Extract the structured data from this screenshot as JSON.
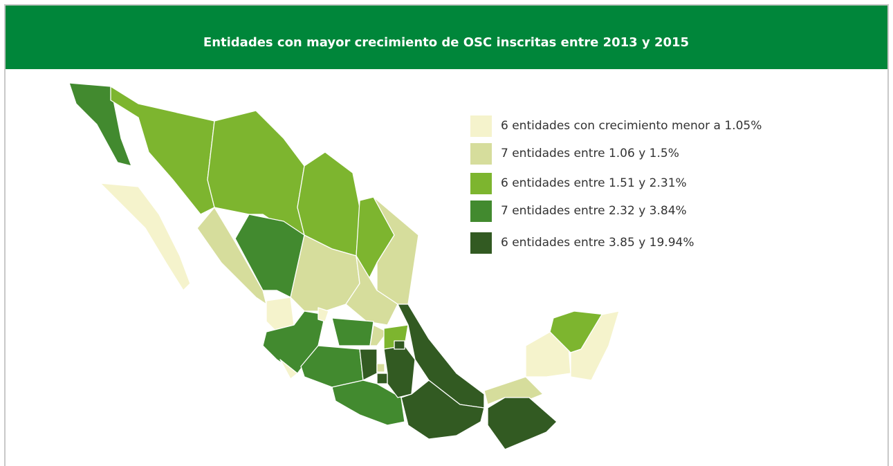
{
  "title": "Entidades con mayor crecimiento de OSC inscritas entre 2013 y 2015",
  "legend": [
    {
      "label": "6 entidades con crecimiento menor a 1.05%",
      "color": "#f5f3cc"
    },
    {
      "label": "7 entidades entre 1.06 y 1.5%",
      "color": "#d6dd9c"
    },
    {
      "label": "6 entidades entre 1.51 y 2.31%",
      "color": "#7db52f"
    },
    {
      "label": "7 entidades entre 2.32 y 3.84%",
      "color": "#428a2f"
    },
    {
      "label": "6 entidades entre 3.85 y 19.94%",
      "color": "#325a22"
    }
  ]
}
